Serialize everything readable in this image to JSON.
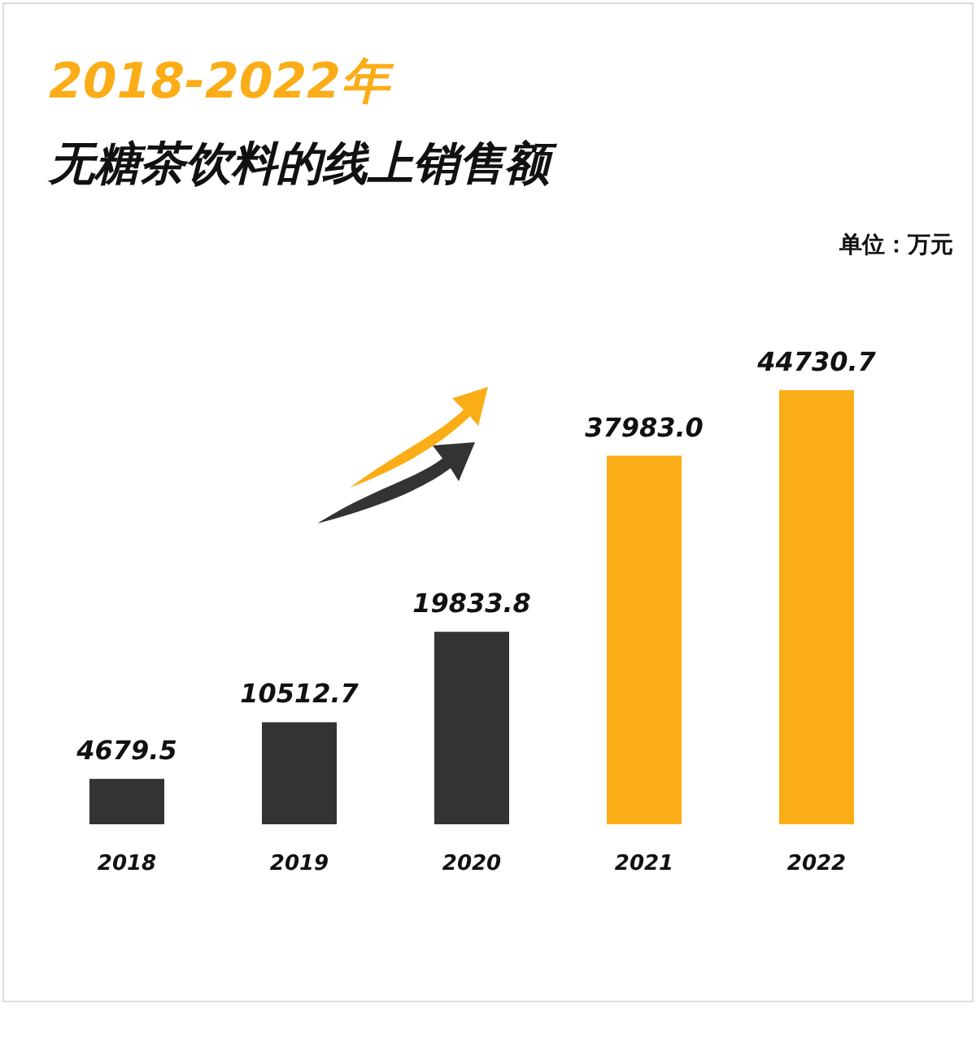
{
  "chart_data": {
    "type": "bar",
    "title": "2018-2022年",
    "subtitle": "无糖茶饮料的线上销售额",
    "annotations": [
      "单位：万元"
    ],
    "categories": [
      "2018",
      "2019",
      "2020",
      "2021",
      "2022"
    ],
    "values": [
      4679.5,
      10512.7,
      19833.8,
      37983.0,
      44730.7
    ],
    "value_labels": [
      "4679.5",
      "10512.7",
      "19833.8",
      "37983.0",
      "44730.7"
    ],
    "colors": [
      "#333333",
      "#333333",
      "#333333",
      "#fbad18",
      "#fbad18"
    ]
  }
}
